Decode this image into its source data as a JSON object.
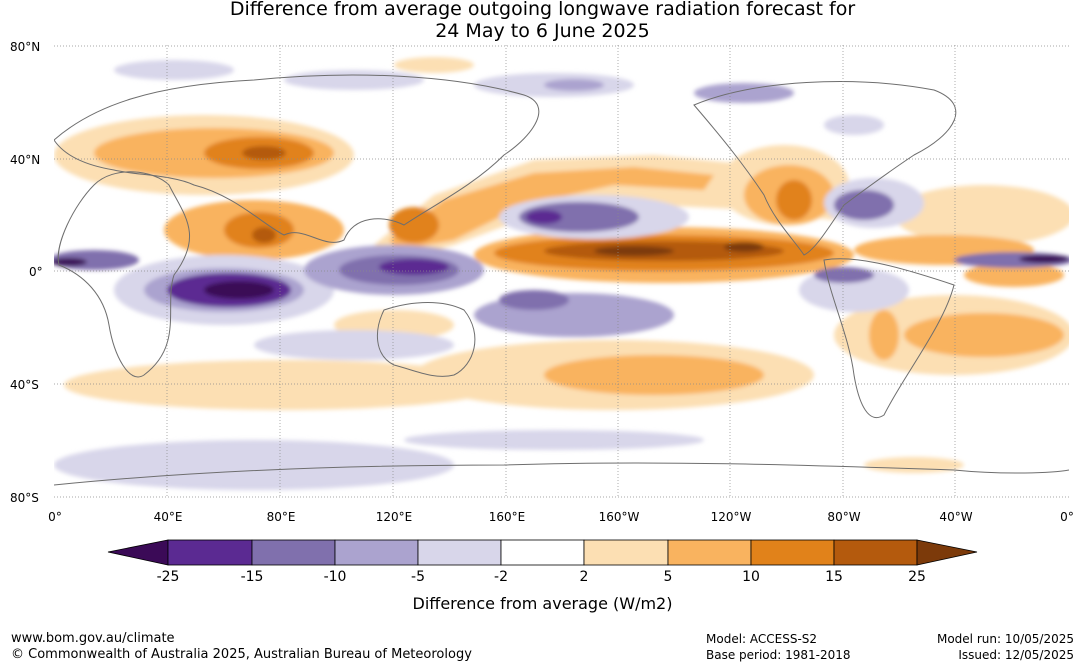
{
  "title_line1": "Difference from average outgoing longwave radiation forecast for",
  "title_line2": "24 May to 6 June 2025",
  "lat_labels": [
    "80°N",
    "40°N",
    "0°",
    "40°S",
    "80°S"
  ],
  "lon_labels": [
    "0°",
    "40°E",
    "80°E",
    "120°E",
    "160°E",
    "160°W",
    "120°W",
    "80°W",
    "40°W",
    "0°"
  ],
  "colorbar": {
    "ticks": [
      "-25",
      "-15",
      "-10",
      "-5",
      "-2",
      "2",
      "5",
      "10",
      "15",
      "25"
    ],
    "colors": [
      "#3b0a57",
      "#5b2a92",
      "#8070ad",
      "#aba3cf",
      "#d8d6ea",
      "#ffffff",
      "#fcdfb3",
      "#f9b35f",
      "#e1821a",
      "#b45a0d",
      "#7c3a0a"
    ],
    "title": "Difference from average (W/m2)"
  },
  "footer": {
    "website": "www.bom.gov.au/climate",
    "copyright": "© Commonwealth of Australia 2025, Australian Bureau of Meteorology",
    "model": "Model: ACCESS-S2",
    "base_period": "Base period: 1981-2018",
    "model_run": "Model run: 10/05/2025",
    "issued": "Issued: 12/05/2025"
  }
}
